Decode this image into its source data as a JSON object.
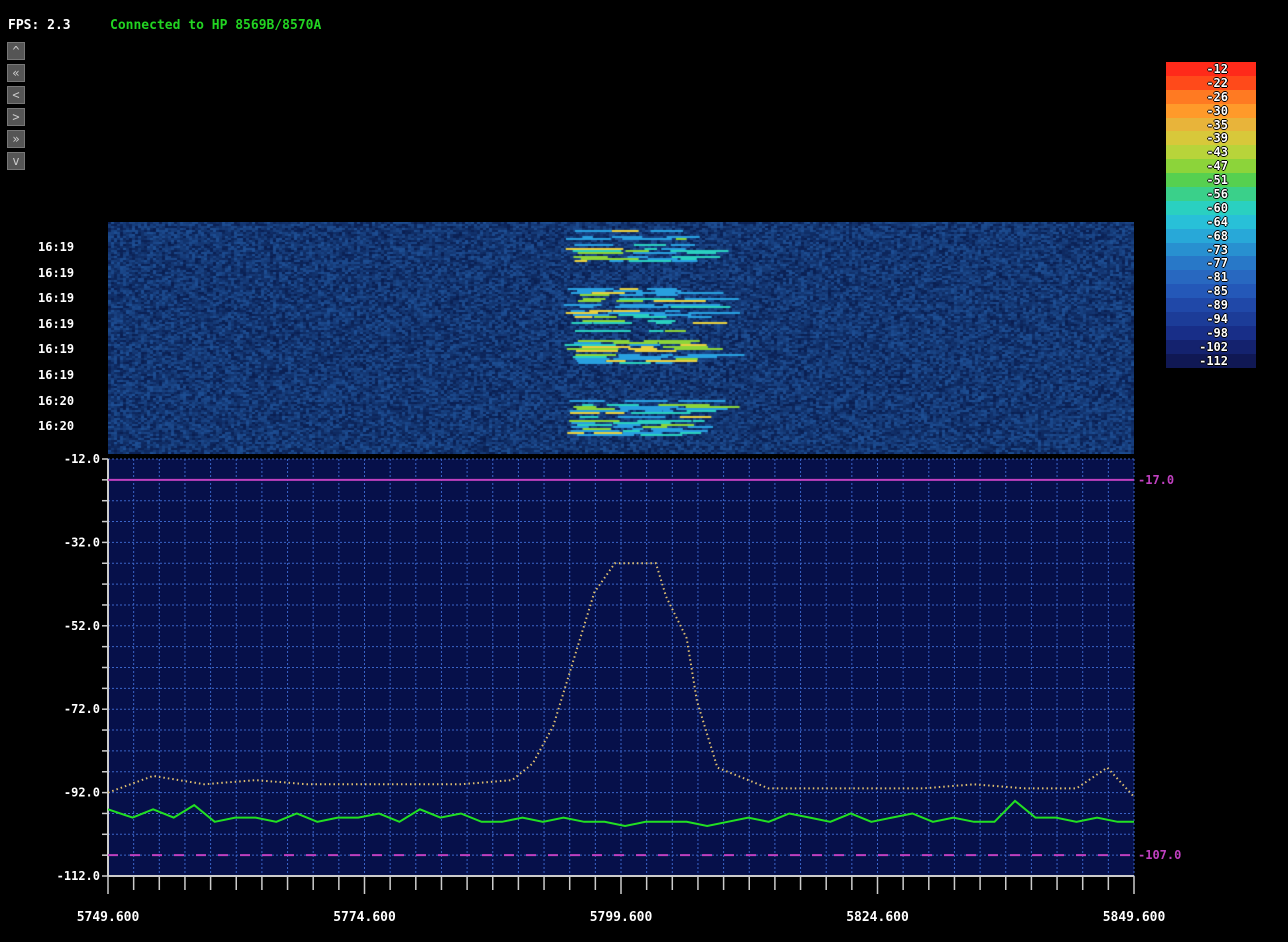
{
  "header": {
    "fps_label": "FPS: 2.3",
    "status_text": "Connected to HP 8569B/8570A"
  },
  "nav_buttons": [
    {
      "name": "scroll-up",
      "glyph": "^"
    },
    {
      "name": "fast-rewind",
      "glyph": "«"
    },
    {
      "name": "step-back",
      "glyph": "<"
    },
    {
      "name": "step-forward",
      "glyph": ">"
    },
    {
      "name": "fast-forward",
      "glyph": "»"
    },
    {
      "name": "scroll-down",
      "glyph": "v"
    }
  ],
  "waterfall": {
    "time_labels": [
      "16:19",
      "16:19",
      "16:19",
      "16:19",
      "16:19",
      "16:19",
      "16:20",
      "16:20"
    ]
  },
  "legend": {
    "levels": [
      "-12",
      "-22",
      "-26",
      "-30",
      "-35",
      "-39",
      "-43",
      "-47",
      "-51",
      "-56",
      "-60",
      "-64",
      "-68",
      "-73",
      "-77",
      "-81",
      "-85",
      "-89",
      "-94",
      "-98",
      "-102",
      "-112"
    ],
    "colors": [
      "#ff2a1a",
      "#ff4a1a",
      "#ff7a22",
      "#ff9a2a",
      "#e8b43a",
      "#d8c83a",
      "#b8d43a",
      "#8cd43a",
      "#56d050",
      "#3ad08a",
      "#2ad0c0",
      "#28c0d8",
      "#28a8d8",
      "#2890d0",
      "#2878c8",
      "#2868c0",
      "#2458b8",
      "#2048a8",
      "#1c3c98",
      "#182e88",
      "#14226e",
      "#101854"
    ]
  },
  "chart_data": {
    "type": "line",
    "x_ticks": [
      "5749.600",
      "5774.600",
      "5799.600",
      "5824.600",
      "5849.600"
    ],
    "y_ticks": [
      "-12.0",
      "-32.0",
      "-52.0",
      "-72.0",
      "-92.0",
      "-112.0"
    ],
    "xlim": [
      5749.6,
      5849.6
    ],
    "ylim": [
      -112,
      -12
    ],
    "ref_lines": [
      {
        "label": "-17.0",
        "value": -17,
        "style": "solid",
        "color": "#c040c0"
      },
      {
        "label": "-107.0",
        "value": -107,
        "style": "dashed",
        "color": "#c040c0"
      }
    ],
    "series": [
      {
        "style": "dotted",
        "color": "#e0c070",
        "x": [
          5749.6,
          5754,
          5759,
          5764,
          5769,
          5774,
          5779,
          5784,
          5789,
          5791,
          5793,
          5795,
          5797,
          5799,
          5801,
          5803,
          5804,
          5806,
          5807,
          5809,
          5814,
          5819,
          5824,
          5829,
          5834,
          5839,
          5844,
          5847,
          5849.6
        ],
        "y": [
          -92,
          -88,
          -90,
          -89,
          -90,
          -90,
          -90,
          -90,
          -89,
          -85,
          -76,
          -60,
          -44,
          -37,
          -37,
          -37,
          -45,
          -55,
          -70,
          -86,
          -91,
          -91,
          -91,
          -91,
          -90,
          -91,
          -91,
          -86,
          -93
        ]
      },
      {
        "style": "solid",
        "color": "#22e022",
        "x": [
          5749.6,
          5752,
          5754,
          5756,
          5758,
          5760,
          5762,
          5764,
          5766,
          5768,
          5770,
          5772,
          5774,
          5776,
          5778,
          5780,
          5782,
          5784,
          5786,
          5788,
          5790,
          5792,
          5794,
          5796,
          5798,
          5800,
          5802,
          5804,
          5806,
          5808,
          5810,
          5812,
          5814,
          5816,
          5818,
          5820,
          5822,
          5824,
          5826,
          5828,
          5830,
          5832,
          5834,
          5836,
          5838,
          5840,
          5842,
          5844,
          5846,
          5848,
          5849.6
        ],
        "y": [
          -96,
          -98,
          -96,
          -98,
          -95,
          -99,
          -98,
          -98,
          -99,
          -97,
          -99,
          -98,
          -98,
          -97,
          -99,
          -96,
          -98,
          -97,
          -99,
          -99,
          -98,
          -99,
          -98,
          -99,
          -99,
          -100,
          -99,
          -99,
          -99,
          -100,
          -99,
          -98,
          -99,
          -97,
          -98,
          -99,
          -97,
          -99,
          -98,
          -97,
          -99,
          -98,
          -99,
          -99,
          -94,
          -98,
          -98,
          -99,
          -98,
          -99,
          -99
        ]
      }
    ],
    "grid": true
  }
}
